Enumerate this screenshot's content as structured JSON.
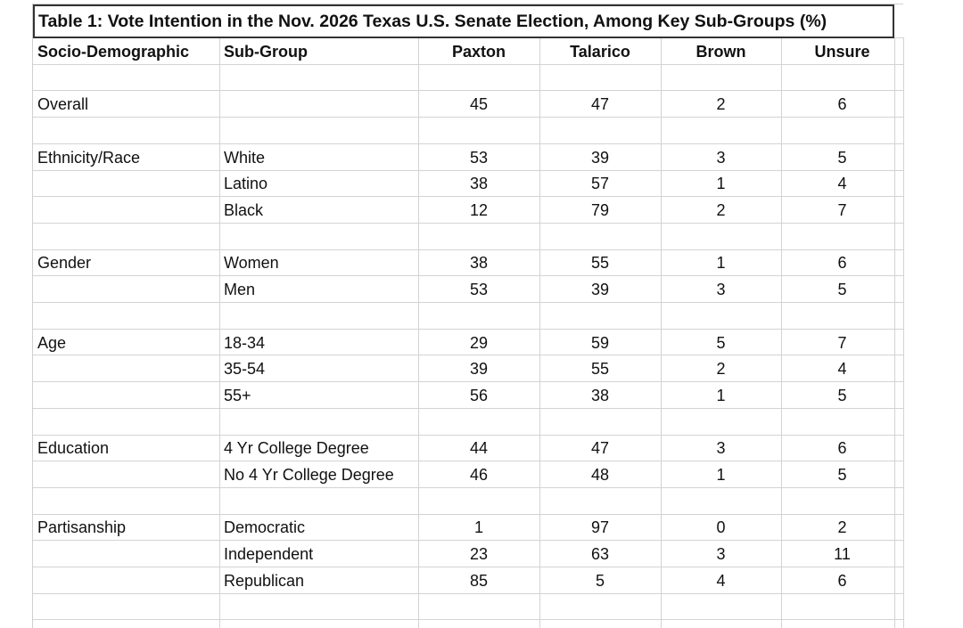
{
  "title": "Table 1: Vote Intention in the Nov. 2026 Texas U.S. Senate Election, Among Key Sub-Groups (%)",
  "columns": [
    "Socio-Demographic",
    "Sub-Group",
    "Paxton",
    "Talarico",
    "Brown",
    "Unsure"
  ],
  "groups": [
    {
      "name": "Overall",
      "rows": [
        {
          "sub": "",
          "values": [
            "45",
            "47",
            "2",
            "6"
          ]
        }
      ]
    },
    {
      "name": "Ethnicity/Race",
      "rows": [
        {
          "sub": "White",
          "values": [
            "53",
            "39",
            "3",
            "5"
          ]
        },
        {
          "sub": "Latino",
          "values": [
            "38",
            "57",
            "1",
            "4"
          ]
        },
        {
          "sub": "Black",
          "values": [
            "12",
            "79",
            "2",
            "7"
          ]
        }
      ]
    },
    {
      "name": "Gender",
      "rows": [
        {
          "sub": "Women",
          "values": [
            "38",
            "55",
            "1",
            "6"
          ]
        },
        {
          "sub": "Men",
          "values": [
            "53",
            "39",
            "3",
            "5"
          ]
        }
      ]
    },
    {
      "name": "Age",
      "rows": [
        {
          "sub": "18-34",
          "values": [
            "29",
            "59",
            "5",
            "7"
          ]
        },
        {
          "sub": "35-54",
          "values": [
            "39",
            "55",
            "2",
            "4"
          ]
        },
        {
          "sub": "55+",
          "values": [
            "56",
            "38",
            "1",
            "5"
          ]
        }
      ]
    },
    {
      "name": "Education",
      "rows": [
        {
          "sub": "4 Yr College Degree",
          "values": [
            "44",
            "47",
            "3",
            "6"
          ]
        },
        {
          "sub": "No 4 Yr College Degree",
          "values": [
            "46",
            "48",
            "1",
            "5"
          ]
        }
      ]
    },
    {
      "name": "Partisanship",
      "rows": [
        {
          "sub": "Democratic",
          "values": [
            "1",
            "97",
            "0",
            "2"
          ]
        },
        {
          "sub": "Independent",
          "values": [
            "23",
            "63",
            "3",
            "11"
          ]
        },
        {
          "sub": "Republican",
          "values": [
            "85",
            "5",
            "4",
            "6"
          ]
        }
      ]
    }
  ]
}
